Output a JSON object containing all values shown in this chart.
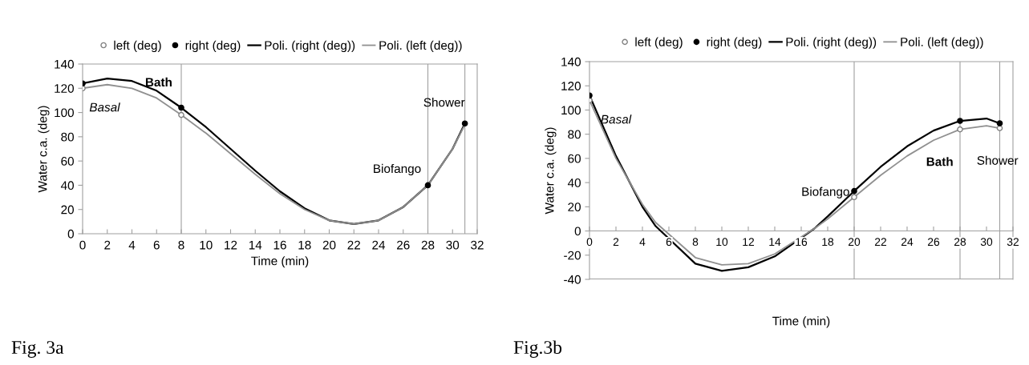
{
  "chart_data": [
    {
      "type": "line",
      "title": "Fig. 3a",
      "xlabel": "Time (min)",
      "ylabel": "Water c.a. (deg)",
      "xlim": [
        0,
        32
      ],
      "xticks": [
        0,
        2,
        4,
        6,
        8,
        10,
        12,
        14,
        16,
        18,
        20,
        22,
        24,
        26,
        28,
        30,
        32
      ],
      "ylim": [
        0,
        140
      ],
      "yticks": [
        0,
        20,
        40,
        60,
        80,
        100,
        120,
        140
      ],
      "legend": "top",
      "grid": false,
      "series": [
        {
          "name": "left (deg)",
          "type": "scatter",
          "marker": "circle",
          "color": "#808080",
          "x": [
            0,
            8
          ],
          "values": [
            120,
            98
          ]
        },
        {
          "name": "right (deg)",
          "type": "scatter",
          "marker": "circle",
          "color": "#000000",
          "x": [
            0,
            8,
            28,
            31
          ],
          "values": [
            124,
            104,
            40,
            91
          ]
        },
        {
          "name": "Poli. (right (deg))",
          "type": "line",
          "color": "#000000",
          "x": [
            0,
            2,
            4,
            6,
            8,
            10,
            12,
            14,
            16,
            18,
            20,
            22,
            24,
            26,
            28,
            30,
            31
          ],
          "values": [
            124,
            128,
            126,
            118,
            104,
            88,
            70,
            52,
            35,
            21,
            11,
            8,
            11,
            22,
            40,
            70,
            91
          ]
        },
        {
          "name": "Poli. (left (deg))",
          "type": "line",
          "color": "#909090",
          "x": [
            0,
            2,
            4,
            6,
            8,
            10,
            12,
            14,
            16,
            18,
            20,
            22,
            24,
            26,
            28,
            30,
            31
          ],
          "values": [
            120,
            123,
            120,
            112,
            98,
            83,
            66,
            49,
            33,
            20,
            11,
            8,
            11,
            22,
            40,
            70,
            90
          ]
        }
      ],
      "ref_lines": [
        {
          "axis": "x",
          "value": 8,
          "color": "#a0a0a0"
        },
        {
          "axis": "x",
          "value": 28,
          "color": "#a0a0a0"
        },
        {
          "axis": "x",
          "value": 31,
          "color": "#a0a0a0"
        }
      ],
      "annotations": [
        {
          "text": "Basal",
          "x": 0,
          "y": 120
        },
        {
          "text": "Bath",
          "x": 8,
          "y": 104
        },
        {
          "text": "Biofango",
          "x": 28,
          "y": 40
        },
        {
          "text": "Shower",
          "x": 31,
          "y": 91
        }
      ]
    },
    {
      "type": "line",
      "title": "Fig.3b",
      "xlabel": "Time (min)",
      "ylabel": "Water c.a. (deg)",
      "xlim": [
        0,
        32
      ],
      "xticks": [
        0,
        2,
        4,
        6,
        8,
        10,
        12,
        14,
        16,
        18,
        20,
        22,
        24,
        26,
        28,
        30,
        32
      ],
      "ylim": [
        -40,
        140
      ],
      "yticks": [
        -40,
        -20,
        0,
        20,
        40,
        60,
        80,
        100,
        120,
        140
      ],
      "legend": "top",
      "grid": false,
      "series": [
        {
          "name": "left (deg)",
          "type": "scatter",
          "marker": "circle",
          "color": "#808080",
          "x": [
            0,
            20,
            28,
            31
          ],
          "values": [
            108,
            28,
            84,
            85
          ]
        },
        {
          "name": "right (deg)",
          "type": "scatter",
          "marker": "circle",
          "color": "#000000",
          "x": [
            0,
            20,
            28,
            31
          ],
          "values": [
            112,
            33,
            91,
            89
          ]
        },
        {
          "name": "Poli. (right (deg))",
          "type": "line",
          "color": "#000000",
          "x": [
            0,
            2,
            4,
            5,
            8,
            10,
            12,
            14,
            17,
            18,
            20,
            22,
            24,
            26,
            28,
            30,
            31
          ],
          "values": [
            112,
            62,
            20,
            4,
            -27,
            -33,
            -30,
            -21,
            2,
            12,
            33,
            53,
            70,
            83,
            91,
            93,
            89
          ]
        },
        {
          "name": "Poli. (left (deg))",
          "type": "line",
          "color": "#909090",
          "x": [
            0,
            2,
            4,
            5,
            8,
            10,
            12,
            14,
            17,
            18,
            20,
            22,
            24,
            26,
            28,
            30,
            31
          ],
          "values": [
            108,
            60,
            22,
            7,
            -22,
            -28,
            -27,
            -19,
            2,
            10,
            28,
            46,
            62,
            75,
            84,
            87,
            85
          ]
        }
      ],
      "ref_lines": [
        {
          "axis": "x",
          "value": 20,
          "color": "#a0a0a0"
        },
        {
          "axis": "x",
          "value": 28,
          "color": "#a0a0a0"
        },
        {
          "axis": "x",
          "value": 31,
          "color": "#a0a0a0"
        }
      ],
      "annotations": [
        {
          "text": "Basal",
          "x": 0,
          "y": 108
        },
        {
          "text": "Biofango",
          "x": 20,
          "y": 28
        },
        {
          "text": "Bath",
          "x": 28,
          "y": 84
        },
        {
          "text": "Shower",
          "x": 31,
          "y": 85
        }
      ]
    }
  ]
}
